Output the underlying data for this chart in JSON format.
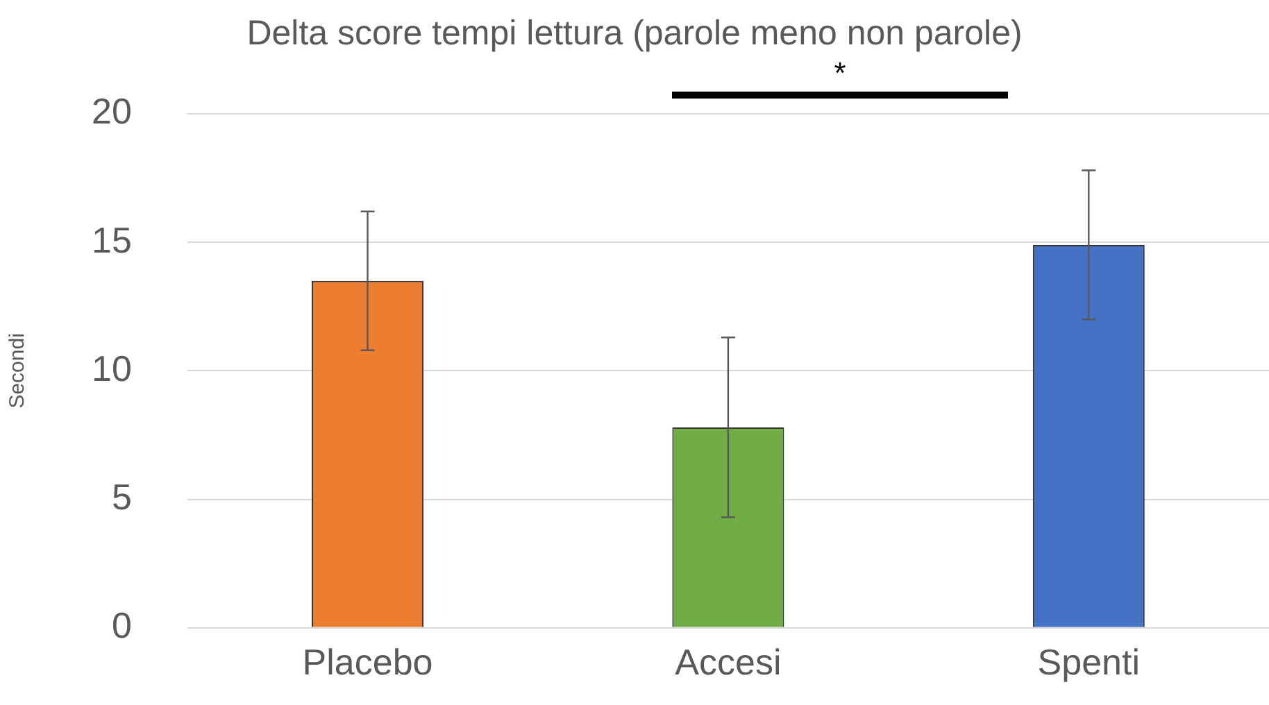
{
  "chart_data": {
    "type": "bar",
    "title": "Delta score tempi lettura (parole meno non parole)",
    "ylabel": "Secondi",
    "categories": [
      "Placebo",
      "Accesi",
      "Spenti"
    ],
    "values": [
      13.5,
      7.8,
      14.9
    ],
    "colors": [
      "#ed7d31",
      "#70ad47",
      "#4472c4"
    ],
    "errors": [
      2.7,
      3.5,
      2.9
    ],
    "ylim": [
      0,
      20
    ],
    "yticks": [
      0,
      5,
      10,
      15,
      20
    ],
    "grid": "y",
    "legend": false,
    "annotations": [
      "*"
    ]
  }
}
